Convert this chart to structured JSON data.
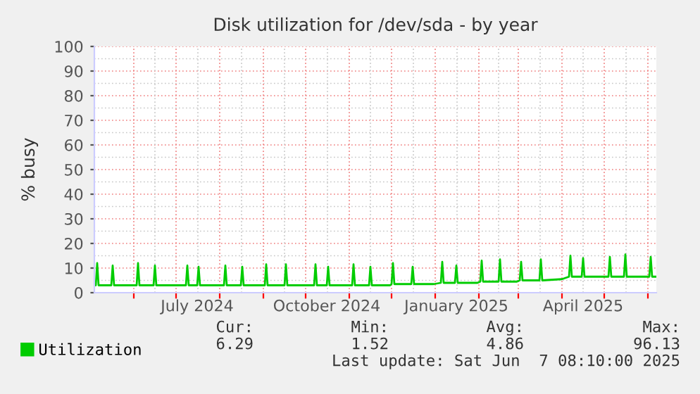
{
  "chart_data": {
    "type": "line",
    "title": "Disk utilization for /dev/sda - by year",
    "ylabel": "% busy",
    "ylim": [
      0,
      100
    ],
    "yticks": [
      0,
      10,
      20,
      30,
      40,
      50,
      60,
      70,
      80,
      90,
      100
    ],
    "xlim": [
      "2024-05-04",
      "2025-06-07"
    ],
    "xticks": [
      {
        "value": "2024-06-01",
        "label": null
      },
      {
        "value": "2024-07-01",
        "label": null
      },
      {
        "value": "2024-08-01",
        "label": null
      },
      {
        "value": "2024-09-01",
        "label": null
      },
      {
        "value": "2024-10-01",
        "label": null
      },
      {
        "value": "2024-11-01",
        "label": null
      },
      {
        "value": "2024-12-01",
        "label": null
      },
      {
        "value": "2025-01-01",
        "label": null
      },
      {
        "value": "2025-02-01",
        "label": null
      },
      {
        "value": "2025-03-01",
        "label": null
      },
      {
        "value": "2025-04-01",
        "label": null
      },
      {
        "value": "2025-05-01",
        "label": null
      },
      {
        "value": "2025-06-01",
        "label": null
      },
      {
        "value": "2024-07-16",
        "label": "July 2024"
      },
      {
        "value": "2024-10-16",
        "label": "October 2024"
      },
      {
        "value": "2025-01-16",
        "label": "January 2025"
      },
      {
        "value": "2025-04-16",
        "label": "April 2025"
      }
    ],
    "grid": true,
    "legend": "bottom left",
    "line_style": "solid",
    "marker": "none",
    "annotations": [
      "Cur:",
      "Min:",
      "Avg:",
      "Max:",
      "6.29",
      "1.52",
      "4.86",
      "96.13",
      "Last update: Sat Jun  7 08:10:00 2025"
    ],
    "series": [
      {
        "name": "Utilization",
        "color": "#00cc00",
        "x": [
          "2024-05-04",
          "2024-05-05",
          "2024-05-06",
          "2024-05-07",
          "2024-05-16",
          "2024-05-17",
          "2024-05-18",
          "2024-06-03",
          "2024-06-04",
          "2024-06-05",
          "2024-06-15",
          "2024-06-16",
          "2024-06-17",
          "2024-07-08",
          "2024-07-09",
          "2024-07-10",
          "2024-07-16",
          "2024-07-17",
          "2024-07-18",
          "2024-08-04",
          "2024-08-05",
          "2024-08-06",
          "2024-08-16",
          "2024-08-17",
          "2024-08-18",
          "2024-09-02",
          "2024-09-03",
          "2024-09-04",
          "2024-09-16",
          "2024-09-17",
          "2024-09-18",
          "2024-10-07",
          "2024-10-08",
          "2024-10-09",
          "2024-10-16",
          "2024-10-17",
          "2024-10-18",
          "2024-11-03",
          "2024-11-04",
          "2024-11-05",
          "2024-11-15",
          "2024-11-16",
          "2024-11-17",
          "2024-11-30",
          "2024-12-01",
          "2024-12-02",
          "2024-12-03",
          "2024-12-15",
          "2024-12-16",
          "2024-12-17",
          "2024-12-31",
          "2025-01-05",
          "2025-01-06",
          "2025-01-07",
          "2025-01-15",
          "2025-01-16",
          "2025-01-17",
          "2025-01-31",
          "2025-02-02",
          "2025-02-03",
          "2025-02-04",
          "2025-02-15",
          "2025-02-16",
          "2025-02-17",
          "2025-02-28",
          "2025-03-02",
          "2025-03-03",
          "2025-03-04",
          "2025-03-16",
          "2025-03-17",
          "2025-03-18",
          "2025-04-01",
          "2025-04-06",
          "2025-04-07",
          "2025-04-08",
          "2025-04-15",
          "2025-04-16",
          "2025-04-17",
          "2025-05-04",
          "2025-05-05",
          "2025-05-06",
          "2025-05-15",
          "2025-05-16",
          "2025-05-17",
          "2025-06-02",
          "2025-06-03",
          "2025-06-04",
          "2025-06-07"
        ],
        "values": [
          3,
          3,
          12,
          3,
          3,
          11,
          3,
          3,
          12,
          3,
          3,
          11,
          3,
          3,
          11,
          3,
          3,
          10.5,
          3,
          3,
          11,
          3,
          3,
          10.5,
          3,
          3,
          11.5,
          3,
          3,
          11.5,
          3,
          3,
          11.5,
          3,
          3,
          10.5,
          3,
          3,
          11.5,
          3,
          3,
          10.5,
          3,
          3,
          3.5,
          12,
          3.5,
          3.5,
          10.5,
          3.5,
          3.5,
          4,
          12.5,
          4,
          4,
          11,
          4,
          4,
          4.5,
          13,
          4.5,
          4.5,
          13.5,
          4.5,
          4.5,
          5,
          12.5,
          5,
          5,
          13.5,
          5,
          5.5,
          6.5,
          15,
          6.5,
          6.5,
          14,
          6.5,
          6.5,
          14.5,
          6.5,
          6.5,
          15.5,
          6.5,
          6.5,
          14.5,
          6.5,
          6.5
        ]
      }
    ]
  }
}
